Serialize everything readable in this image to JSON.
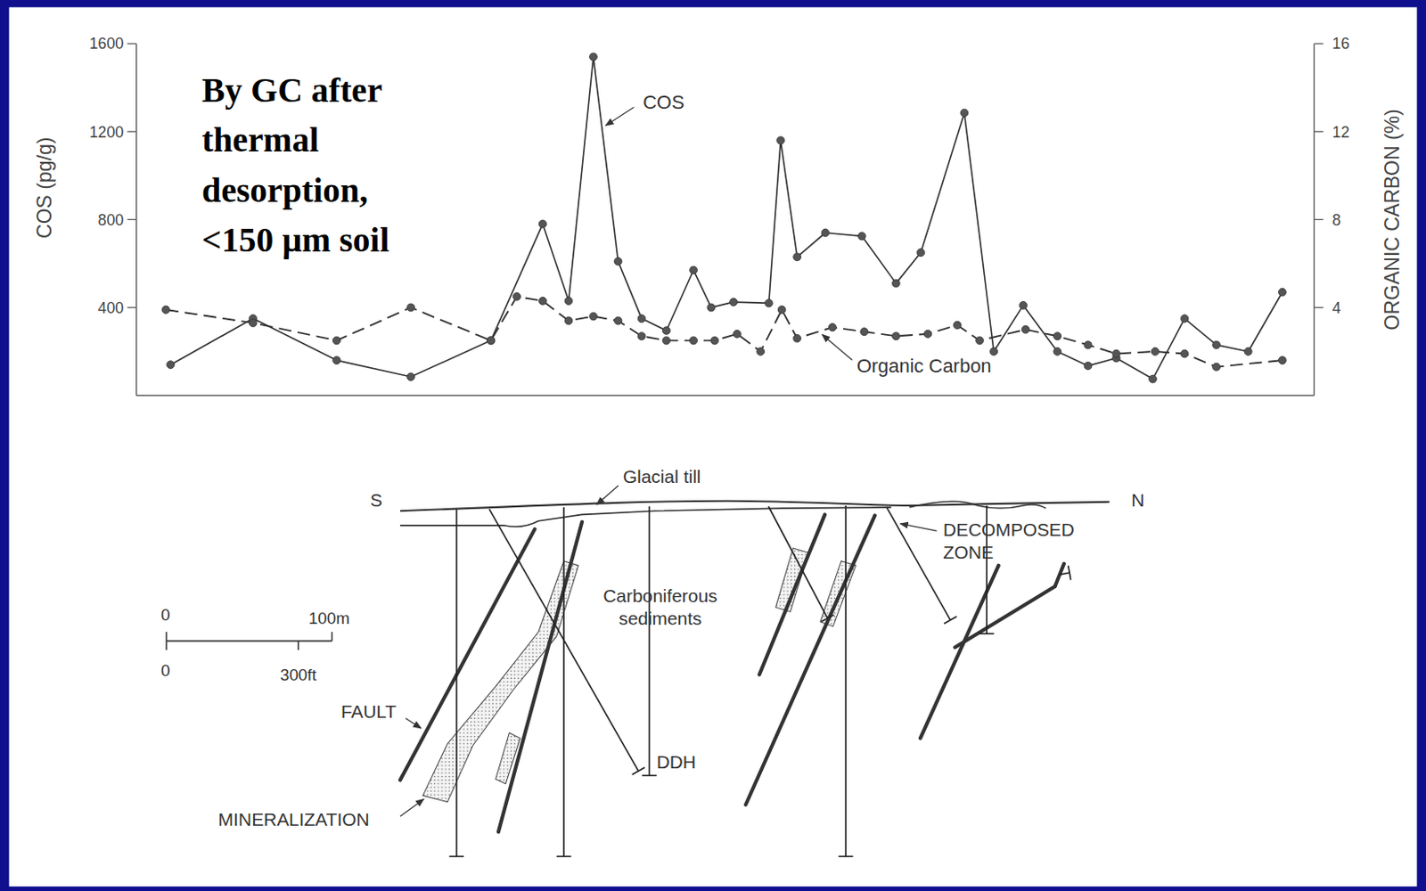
{
  "chart_data": {
    "type": "line",
    "title": "By GC after thermal desorption, <150 µm soil",
    "y_label": "COS (pg/g)",
    "y2_label": "ORGANIC CARBON (%)",
    "xlim": [
      0,
      100
    ],
    "ylim": [
      0,
      1600
    ],
    "yticks": [
      400,
      800,
      1200,
      1600
    ],
    "y2lim": [
      0,
      16
    ],
    "y2ticks": [
      4,
      8,
      12,
      16
    ],
    "grid": false,
    "tick_labels": "y",
    "series": [
      {
        "name": "COS",
        "color": "#333333",
        "line_style": "solid",
        "marker": "circle",
        "x": [
          2.9,
          9.9,
          17.0,
          23.3,
          30.1,
          34.5,
          36.7,
          38.8,
          40.9,
          42.9,
          45.0,
          47.3,
          48.8,
          50.7,
          53.7,
          54.7,
          56.1,
          58.5,
          61.6,
          64.5,
          66.6,
          70.3,
          72.8,
          75.3,
          78.2,
          80.8,
          83.2,
          86.3,
          89.0,
          91.7,
          94.4,
          97.3
        ],
        "values": [
          140,
          350,
          160,
          85,
          250,
          780,
          430,
          1540,
          610,
          350,
          295,
          570,
          400,
          425,
          420,
          1160,
          630,
          740,
          725,
          510,
          650,
          1285,
          200,
          410,
          200,
          135,
          170,
          75,
          350,
          230,
          200,
          470
        ]
      },
      {
        "name": "Organic Carbon",
        "color": "#333333",
        "line_style": "dashed",
        "marker": "circle",
        "axis": "y2",
        "x": [
          2.5,
          9.9,
          17.0,
          23.3,
          30.1,
          32.3,
          34.5,
          36.7,
          38.8,
          40.9,
          42.9,
          45.0,
          47.3,
          49.1,
          51.0,
          53.0,
          54.8,
          56.1,
          59.1,
          61.8,
          64.5,
          67.2,
          69.7,
          71.6,
          75.5,
          78.2,
          80.8,
          83.2,
          86.5,
          89.0,
          91.7,
          97.3
        ],
        "values": [
          3.9,
          3.3,
          2.5,
          4.0,
          2.5,
          4.5,
          4.3,
          3.4,
          3.6,
          3.4,
          2.7,
          2.5,
          2.5,
          2.5,
          2.8,
          2.0,
          3.9,
          2.6,
          3.1,
          2.9,
          2.7,
          2.8,
          3.2,
          2.5,
          3.0,
          2.7,
          2.3,
          1.9,
          2.0,
          1.9,
          1.3,
          1.6
        ]
      }
    ]
  },
  "section": {
    "labels": {
      "glacial_till": "Glacial till",
      "south": "S",
      "north": "N",
      "decomposed_zone": "DECOMPOSED ZONE",
      "sediments": "Carboniferous sediments",
      "fault": "FAULT",
      "drill_hole": "DDH",
      "mineralization": "MINERALIZATION"
    },
    "scale_bar": {
      "metric_zero": "0",
      "metric": "100m",
      "imperial_zero": "0",
      "imperial": "300ft"
    }
  }
}
